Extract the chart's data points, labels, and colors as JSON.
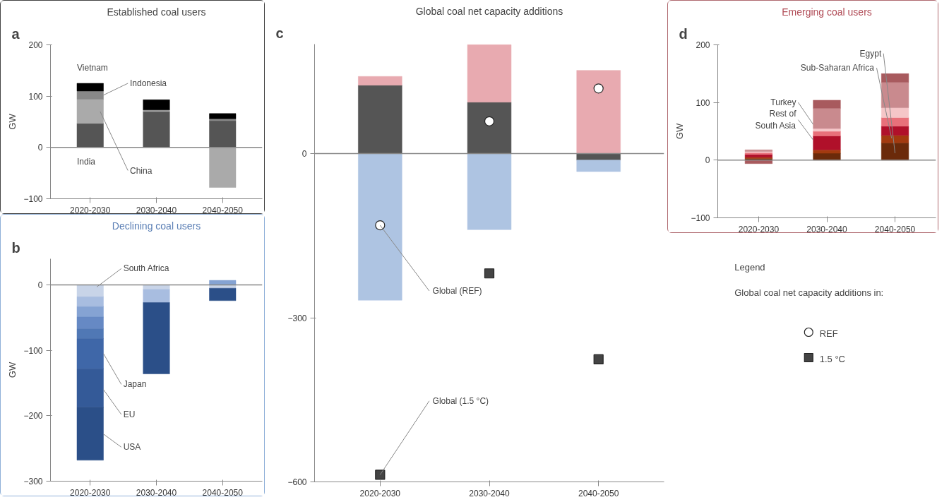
{
  "chart_data": [
    {
      "type": "bar",
      "stacked": true,
      "title": "Established coal users",
      "ylabel": "GW",
      "categories": [
        "2020-2030",
        "2030-2040",
        "2040-2050"
      ],
      "ylim": [
        -100,
        200
      ],
      "yticks": [
        -100,
        0,
        100,
        200
      ],
      "series": [
        {
          "name": "India",
          "color": "#555555",
          "values": [
            47,
            70,
            52
          ]
        },
        {
          "name": "China",
          "color": "#aaaaaa",
          "values": [
            47,
            3,
            -78
          ]
        },
        {
          "name": "Indonesia",
          "color": "#888888",
          "values": [
            16,
            0,
            4
          ]
        },
        {
          "name": "Vietnam",
          "color": "#000000",
          "values": [
            15,
            20,
            10
          ]
        }
      ],
      "annotations": [
        "a"
      ],
      "ref_lines": [
        {
          "axis": "y",
          "value": 0
        }
      ]
    },
    {
      "type": "bar",
      "stacked": true,
      "title": "Declining coal users",
      "ylabel": "GW",
      "categories": [
        "2020-2030",
        "2030-2040",
        "2040-2050"
      ],
      "ylim": [
        -300,
        40
      ],
      "yticks": [
        -300,
        -200,
        -100,
        0
      ],
      "series": [
        {
          "name": "South Africa",
          "color": "#c8d4e8",
          "values": [
            -18,
            -7,
            -5
          ]
        },
        {
          "color": "#a8bde0",
          "values": [
            -15,
            -20,
            0
          ]
        },
        {
          "color": "#85a3d3",
          "values": [
            -16,
            0,
            7
          ]
        },
        {
          "color": "#6689c4",
          "values": [
            -18,
            0,
            0
          ]
        },
        {
          "color": "#5078b5",
          "values": [
            -15,
            0,
            0
          ]
        },
        {
          "name": "Japan",
          "color": "#3f67a8",
          "values": [
            -46,
            0,
            0
          ]
        },
        {
          "name": "EU",
          "color": "#345a98",
          "values": [
            -59,
            0,
            0
          ]
        },
        {
          "name": "USA",
          "color": "#2b4f88",
          "values": [
            -81,
            -109,
            -19
          ]
        }
      ],
      "annotations": [
        "b"
      ],
      "ref_lines": [
        {
          "axis": "y",
          "value": 0
        }
      ]
    },
    {
      "type": "bar",
      "stacked": true,
      "title": "Global coal net capacity additions",
      "categories": [
        "2020-2030",
        "2030-2040",
        "2040-2050"
      ],
      "ylim": [
        -600,
        200
      ],
      "yticks": [
        -600,
        -300,
        0
      ],
      "series": [
        {
          "color": "#555555",
          "values": [
            125,
            94,
            -12
          ]
        },
        {
          "color": "#e8aab0",
          "values": [
            16,
            105,
            152
          ]
        },
        {
          "color": "#aec4e2",
          "values": [
            -268,
            -139,
            -21
          ]
        },
        {
          "type": "scatter",
          "name": "REF",
          "marker": "circle",
          "color": "#ffffff",
          "values": [
            -131,
            59,
            119
          ]
        },
        {
          "type": "scatter",
          "name": "1.5 °C",
          "marker": "square",
          "color": "#444444",
          "values": [
            -587,
            -219,
            -376
          ]
        }
      ],
      "legend": "right",
      "legend_title": "Legend",
      "annotations": [
        "c",
        "Global coal net capacity additions in:",
        {
          "text": "Global (REF)",
          "x": "2020-2030",
          "y": -131
        },
        {
          "text": "Global (1.5 °C)",
          "x": "2020-2030",
          "y": -587
        }
      ],
      "ref_lines": [
        {
          "axis": "y",
          "value": 0
        }
      ]
    },
    {
      "type": "bar",
      "stacked": true,
      "title": "Emerging coal users",
      "ylabel": "GW",
      "categories": [
        "2020-2030",
        "2030-2040",
        "2040-2050"
      ],
      "ylim": [
        -100,
        200
      ],
      "yticks": [
        -100,
        0,
        100,
        200
      ],
      "series": [
        {
          "name": "Egypt",
          "color": "#6b2a0a",
          "values": [
            3,
            12,
            30
          ]
        },
        {
          "name": "Sub-Saharan Africa",
          "color": "#a33a0f",
          "values": [
            2,
            6,
            13
          ]
        },
        {
          "name": "Rest of South Asia",
          "color": "#b0102a",
          "values": [
            5,
            24,
            16
          ]
        },
        {
          "color": "#e8707a",
          "values": [
            3,
            8,
            15
          ]
        },
        {
          "color": "#f5c6c8",
          "values": [
            2,
            5,
            17
          ]
        },
        {
          "name": "Turkey",
          "color": "#c98a8e",
          "values": [
            3,
            35,
            44
          ]
        },
        {
          "color": "#a85a5e",
          "values": [
            -6,
            14,
            15
          ]
        }
      ],
      "annotations": [
        "d"
      ],
      "ref_lines": [
        {
          "axis": "y",
          "value": 0
        }
      ]
    }
  ]
}
